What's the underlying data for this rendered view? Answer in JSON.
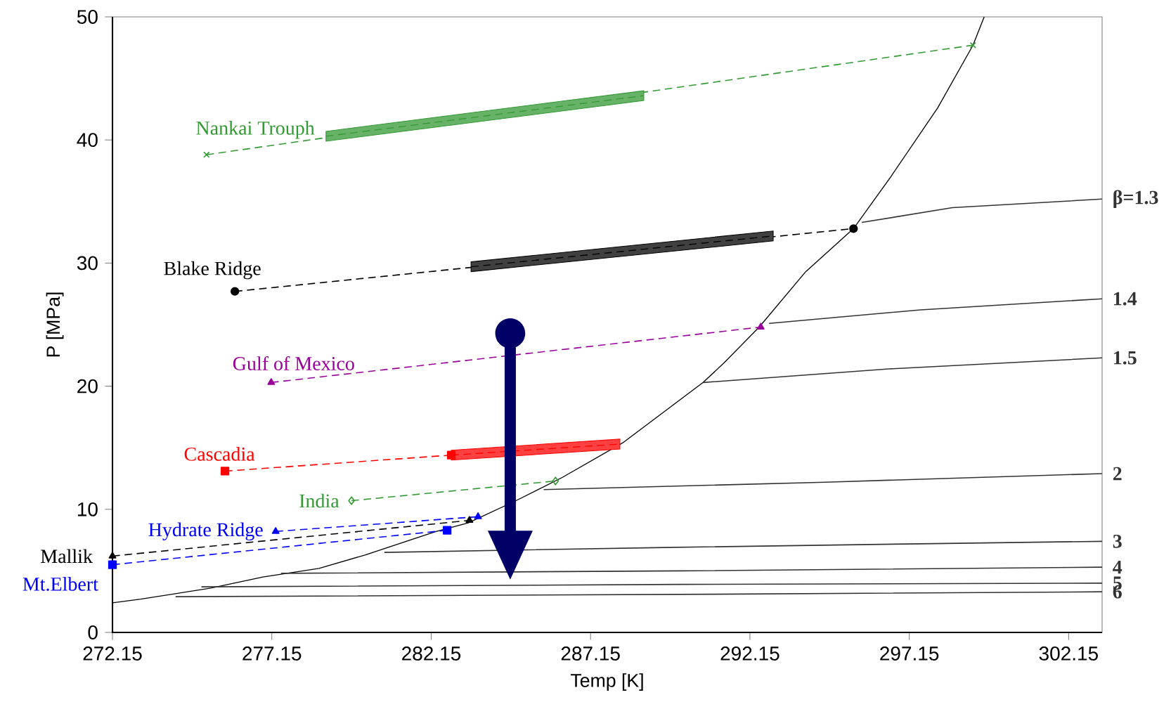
{
  "chart_data": {
    "type": "line",
    "xlabel": "Temp [K]",
    "ylabel": "P [MPa]",
    "xlim": [
      272.15,
      303.2
    ],
    "ylim": [
      0,
      50
    ],
    "xticks": [
      272.15,
      277.15,
      282.15,
      287.15,
      292.15,
      297.15,
      302.15
    ],
    "yticks": [
      0,
      10,
      20,
      30,
      40,
      50
    ],
    "series": [
      {
        "color": "#000000",
        "line_style": "solid",
        "marker": "none",
        "x": [
          272.15,
          273.03,
          275.24,
          276.87,
          278.63,
          280.09,
          282.3,
          283.31,
          284.81,
          286.27,
          288.16,
          290.68,
          291.34,
          292.44,
          293.9,
          295.4,
          296.54,
          298.04,
          299.15,
          299.5
        ],
        "values": [
          2.4,
          2.7,
          3.6,
          4.5,
          5.2,
          6.3,
          8.2,
          8.9,
          10.7,
          12.6,
          15.4,
          20.3,
          21.9,
          24.8,
          29.3,
          32.8,
          36.9,
          42.6,
          47.7,
          50
        ]
      },
      {
        "name": "β=1.3",
        "color": "#333333",
        "line_style": "solid",
        "marker": "none",
        "x": [
          295.66,
          298.5,
          303.2
        ],
        "values": [
          33.3,
          34.5,
          35.2
        ]
      },
      {
        "name": "1.4",
        "color": "#333333",
        "line_style": "solid",
        "marker": "none",
        "x": [
          292.75,
          297.5,
          303.2
        ],
        "values": [
          25.1,
          26.2,
          27.1
        ]
      },
      {
        "name": "1.5",
        "color": "#333333",
        "line_style": "solid",
        "marker": "none",
        "x": [
          290.68,
          296.5,
          303.2
        ],
        "values": [
          20.3,
          21.4,
          22.3
        ]
      },
      {
        "name": "2",
        "color": "#333333",
        "line_style": "solid",
        "marker": "none",
        "x": [
          285.68,
          294.5,
          303.2
        ],
        "values": [
          11.6,
          12.2,
          12.9
        ]
      },
      {
        "name": "3",
        "color": "#333333",
        "line_style": "solid",
        "marker": "none",
        "x": [
          280.68,
          289.5,
          297.5,
          303.2
        ],
        "values": [
          6.5,
          6.9,
          7.2,
          7.4
        ]
      },
      {
        "name": "4",
        "color": "#333333",
        "line_style": "solid",
        "marker": "none",
        "x": [
          277.44,
          290.0,
          303.2
        ],
        "values": [
          4.8,
          5.0,
          5.3
        ]
      },
      {
        "name": "5",
        "color": "#333333",
        "line_style": "solid",
        "marker": "none",
        "x": [
          274.94,
          290.0,
          303.2
        ],
        "values": [
          3.7,
          3.9,
          4.0
        ]
      },
      {
        "name": "6",
        "color": "#333333",
        "line_style": "solid",
        "marker": "none",
        "x": [
          274.13,
          291.0,
          303.2
        ],
        "values": [
          2.9,
          3.1,
          3.3
        ]
      },
      {
        "name": "Nankai Trouph",
        "color": "#339933",
        "line_style": "dashed",
        "marker": "cross",
        "x": [
          275.1,
          299.15
        ],
        "values": [
          38.8,
          47.7
        ]
      },
      {
        "color": "#339933",
        "line_style": "dashed",
        "marker": "none",
        "x": [
          278.85,
          288.82
        ],
        "values": [
          40.3,
          43.6
        ],
        "lower": [
          39.9,
          43.2
        ],
        "upper": [
          40.7,
          44.0
        ]
      },
      {
        "name": "Blake Ridge",
        "color": "#000000",
        "line_style": "dashed",
        "marker": "circle",
        "x": [
          275.99,
          295.4
        ],
        "values": [
          27.7,
          32.8
        ]
      },
      {
        "color": "#000000",
        "line_style": "dashed",
        "marker": "none",
        "x": [
          283.4,
          292.88
        ],
        "values": [
          29.7,
          32.2
        ],
        "lower": [
          29.3,
          31.8
        ],
        "upper": [
          30.1,
          32.6
        ]
      },
      {
        "name": "Gulf of Mexico",
        "color": "#990099",
        "line_style": "dashed",
        "marker": "triangle",
        "x": [
          277.13,
          292.49
        ],
        "values": [
          20.3,
          24.8
        ]
      },
      {
        "name": "Cascadia",
        "color": "#ff0000",
        "line_style": "dashed",
        "marker": "square",
        "x": [
          275.68,
          282.78
        ],
        "values": [
          13.1,
          14.4
        ]
      },
      {
        "color": "#ff0000",
        "line_style": "dashed",
        "marker": "none",
        "x": [
          282.78,
          288.07
        ],
        "values": [
          14.4,
          15.3
        ],
        "lower": [
          14.0,
          14.9
        ],
        "upper": [
          14.8,
          15.7
        ]
      },
      {
        "name": "India",
        "color": "#339933",
        "line_style": "dashed",
        "marker": "diamond",
        "x": [
          279.65,
          286.05
        ],
        "values": [
          10.7,
          12.3
        ]
      },
      {
        "name": "Hydrate Ridge",
        "color": "#0000ff",
        "line_style": "dashed",
        "marker": "triangle",
        "x": [
          277.27,
          283.62
        ],
        "values": [
          8.2,
          9.4
        ]
      },
      {
        "name": "Mt.Elbert",
        "color": "#0000ff",
        "line_style": "dashed",
        "marker": "square",
        "x": [
          272.15,
          282.65
        ],
        "values": [
          5.5,
          8.3
        ]
      },
      {
        "name": "Mallik",
        "color": "#000000",
        "line_style": "dashed",
        "marker": "triangle",
        "x": [
          272.15,
          283.35
        ],
        "values": [
          6.2,
          9.1
        ]
      }
    ]
  }
}
